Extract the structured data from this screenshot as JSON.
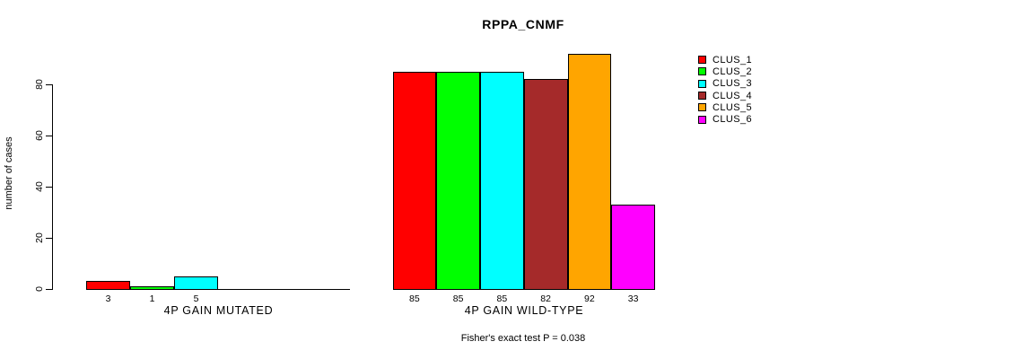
{
  "chart_data": {
    "type": "bar",
    "title": "RPPA_CNMF",
    "ylabel": "number of cases",
    "ylim": [
      0,
      80
    ],
    "yticks": [
      0,
      20,
      40,
      60,
      80
    ],
    "grid": false,
    "legend_position": "right",
    "clusters": [
      {
        "name": "CLUS_1",
        "color": "#ff0000"
      },
      {
        "name": "CLUS_2",
        "color": "#00ff00"
      },
      {
        "name": "CLUS_3",
        "color": "#00ffff"
      },
      {
        "name": "CLUS_4",
        "color": "#a52a2a"
      },
      {
        "name": "CLUS_5",
        "color": "#ffa500"
      },
      {
        "name": "CLUS_6",
        "color": "#ff00ff"
      }
    ],
    "groups": [
      {
        "label": "4P GAIN MUTATED",
        "categories": [
          "CLUS_1",
          "CLUS_2",
          "CLUS_3",
          "CLUS_4",
          "CLUS_5",
          "CLUS_6"
        ],
        "values": [
          3,
          1,
          5,
          0,
          0,
          0
        ],
        "bar_labels": [
          "3",
          "1",
          "5",
          "",
          "",
          ""
        ]
      },
      {
        "label": "4P GAIN WILD-TYPE",
        "categories": [
          "CLUS_1",
          "CLUS_2",
          "CLUS_3",
          "CLUS_4",
          "CLUS_5",
          "CLUS_6"
        ],
        "values": [
          85,
          85,
          85,
          82,
          92,
          33
        ],
        "bar_labels": [
          "85",
          "85",
          "85",
          "82",
          "92",
          "33"
        ]
      }
    ],
    "annotation": "Fisher's exact test P = 0.038"
  }
}
